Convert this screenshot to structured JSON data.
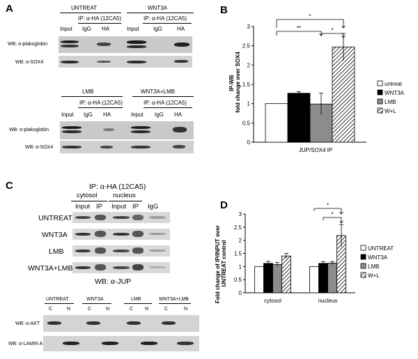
{
  "panels": {
    "a": "A",
    "b": "B",
    "c": "C",
    "d": "D"
  },
  "panel_a": {
    "top": {
      "group1": "UNTREAT",
      "group2": "WNT3A",
      "ip1": "IP: α-HA (12CA5)",
      "ip2": "IP: α-HA (12CA5)",
      "lanes": [
        "Input",
        "IgG",
        "HA"
      ],
      "wb1": "WB: α-plakoglobin",
      "wb2": "WB: α-SOX4"
    },
    "bottom": {
      "group1": "LMB",
      "group2": "WNT3A+LMB",
      "ip1": "IP: α-HA (12CA5)",
      "ip2": "IP: α-HA (12CA5)",
      "lanes": [
        "Input",
        "IgG",
        "HA"
      ],
      "wb1": "WB: α-plakoglobin",
      "wb2": "WB: α-SOX4"
    }
  },
  "panel_c": {
    "ip": "IP: α-HA (12CA5)",
    "fraction1": "cytosol",
    "fraction2": "nucleus",
    "lanes": [
      "Input",
      "IP",
      "Input",
      "IP",
      "IgG"
    ],
    "rows": [
      "UNTREAT",
      "WNT3A",
      "LMB",
      "WNT3A+LMB"
    ],
    "wb": "WB: α-JUP",
    "lower": {
      "groups": [
        "UNTREAT",
        "WNT3A",
        "LMB",
        "WNT3A+LMB"
      ],
      "cn": [
        "C",
        "N"
      ],
      "wb1": "WB: α-AKT",
      "wb2": "WB: α-LAMIN A"
    }
  },
  "chart_data": [
    {
      "panel": "B",
      "type": "bar",
      "categories": [
        "JUP/SOX4 IP"
      ],
      "series": [
        {
          "name": "untreat",
          "values": [
            1.0
          ],
          "error": [
            0.0
          ],
          "fill": "white"
        },
        {
          "name": "WNT3A",
          "values": [
            1.27
          ],
          "error": [
            0.04
          ],
          "fill": "black"
        },
        {
          "name": "LMB",
          "values": [
            0.99
          ],
          "error": [
            0.28
          ],
          "fill": "gray"
        },
        {
          "name": "W+L",
          "values": [
            2.47
          ],
          "error": [
            0.35
          ],
          "fill": "hatch"
        }
      ],
      "ylabel": [
        "IP-WB",
        "fold change over SOX4"
      ],
      "xlabel": "JUP/SOX4 IP",
      "ylim": [
        0,
        3
      ],
      "yticks": [
        "0",
        "0.5",
        "1",
        "1.5",
        "2",
        "2.5",
        "3"
      ],
      "significance": [
        "*",
        "**",
        "*"
      ],
      "legend": "right"
    },
    {
      "panel": "D",
      "type": "bar",
      "categories": [
        "cytosol",
        "nucleus"
      ],
      "series": [
        {
          "name": "UNTREAT",
          "values": [
            1.0,
            1.0
          ],
          "error": [
            0.0,
            0.0
          ],
          "fill": "white"
        },
        {
          "name": "WNT3A",
          "values": [
            1.12,
            1.12
          ],
          "error": [
            0.08,
            0.07
          ],
          "fill": "black"
        },
        {
          "name": "LMB",
          "values": [
            1.08,
            1.13
          ],
          "error": [
            0.07,
            0.06
          ],
          "fill": "gray"
        },
        {
          "name": "W+L",
          "values": [
            1.4,
            2.18
          ],
          "error": [
            0.1,
            0.42
          ],
          "fill": "hatch"
        }
      ],
      "ylabel": [
        "Fold change of IP/INPUT over",
        "UNTREAT control"
      ],
      "ylim": [
        0,
        3
      ],
      "yticks": [
        "0",
        "0.5",
        "1",
        "1.5",
        "2",
        "2.5",
        "3"
      ],
      "significance": [
        "*",
        "*"
      ],
      "legend": "right"
    }
  ]
}
